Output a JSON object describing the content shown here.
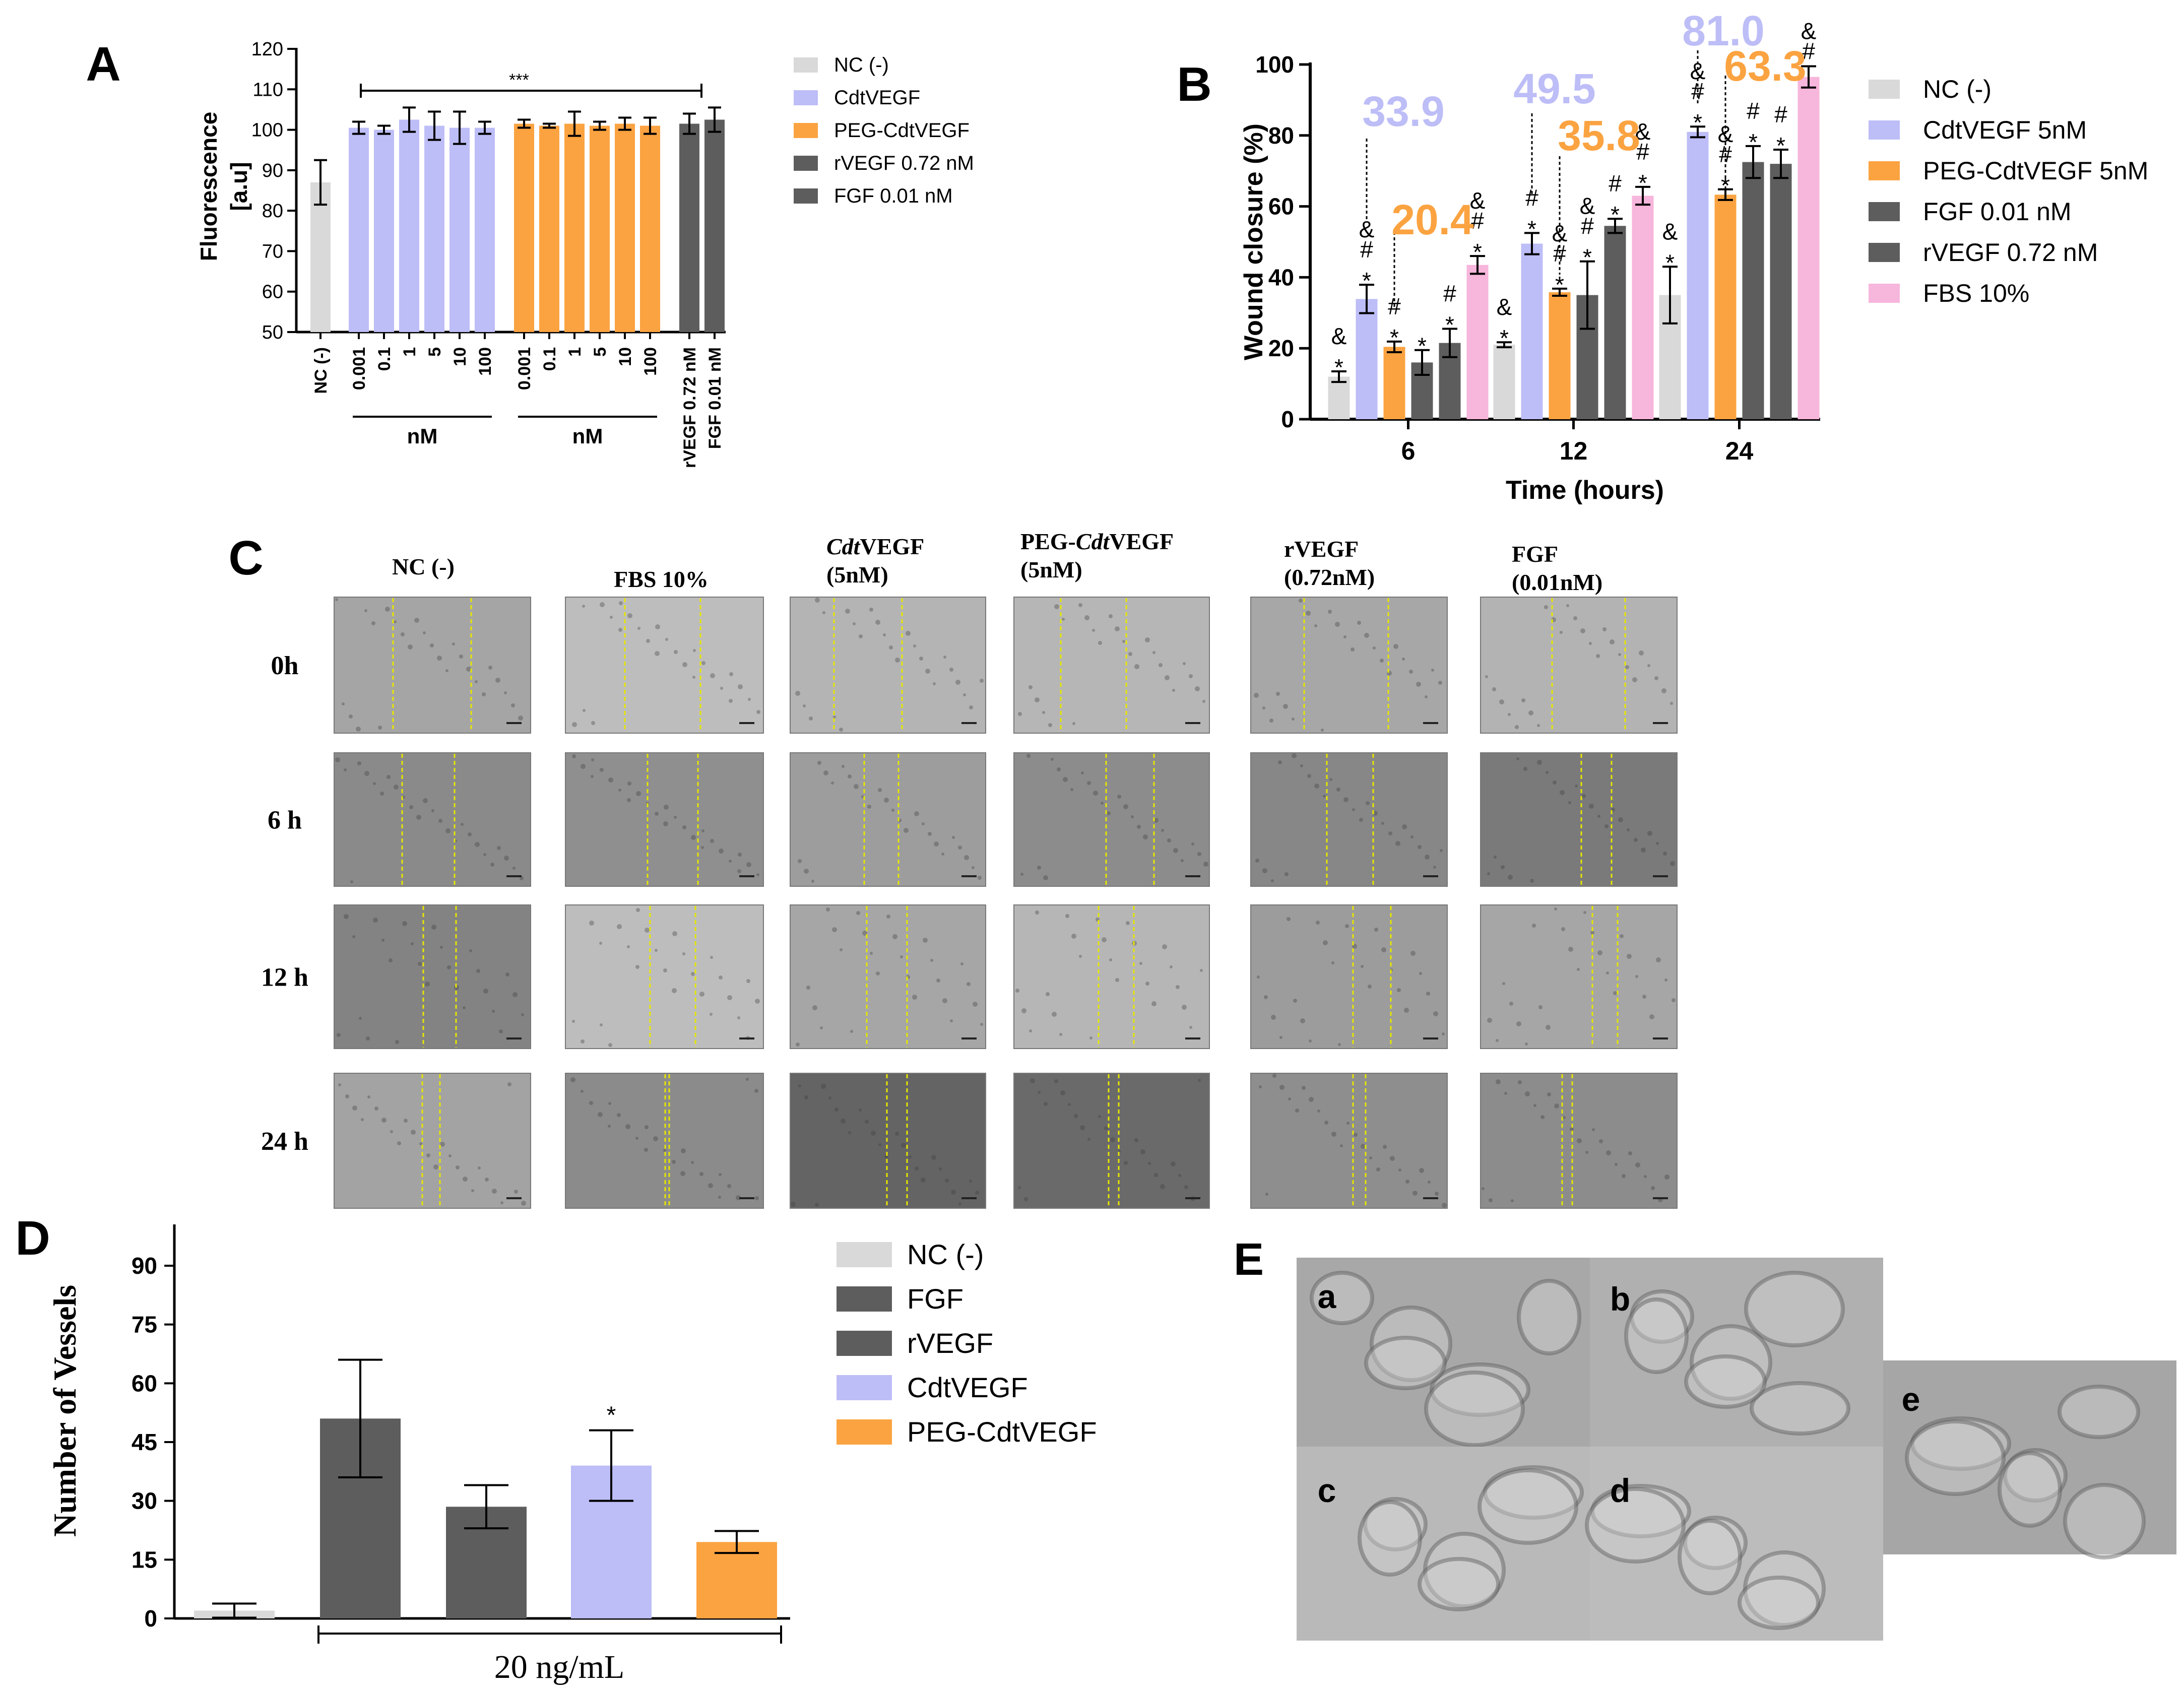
{
  "colors": {
    "nc": "#d9d9d9",
    "cdt": "#bdbdf7",
    "peg": "#fba341",
    "dark": "#5d5d5d",
    "fbs": "#f7b6dc",
    "photo_light": "#b9b9b9",
    "photo_dark": "#6e6e6e",
    "scratch_line": "#e6e600"
  },
  "panel_labels": {
    "a": "A",
    "b": "B",
    "c": "C",
    "d": "D",
    "e": "E"
  },
  "chart_data": [
    {
      "id": "A",
      "type": "bar",
      "title": "",
      "ylabel": "Fluorescence\n[a.u]",
      "ylabel_lines": [
        "Fluorescence",
        "[a.u]"
      ],
      "ylim": [
        50,
        120
      ],
      "yticks": [
        50,
        60,
        70,
        80,
        90,
        100,
        110,
        120
      ],
      "categories": [
        "NC (-)",
        "0.001",
        "0.1",
        "1",
        "5",
        "10",
        "100",
        "0.001",
        "0.1",
        "1",
        "5",
        "10",
        "100",
        "rVEGF 0.72 nM",
        "FGF 0.01 nM"
      ],
      "values": [
        87,
        100.5,
        100,
        102.5,
        101,
        100.5,
        100.5,
        101.5,
        101,
        101.5,
        101,
        101.5,
        101,
        101.5,
        102.5
      ],
      "errors": [
        5.5,
        1.5,
        1,
        3,
        3.5,
        4,
        1.5,
        1,
        0.5,
        3,
        1,
        1.5,
        2,
        2.5,
        3
      ],
      "color_keys": [
        "nc",
        "cdt",
        "cdt",
        "cdt",
        "cdt",
        "cdt",
        "cdt",
        "peg",
        "peg",
        "peg",
        "peg",
        "peg",
        "peg",
        "dark",
        "dark"
      ],
      "group_labels": [
        "nM",
        "nM"
      ],
      "significance": "***",
      "legend": [
        {
          "label": "NC (-)",
          "color_key": "nc"
        },
        {
          "label": "CdtVEGF",
          "color_key": "cdt"
        },
        {
          "label": "PEG-CdtVEGF",
          "color_key": "peg"
        },
        {
          "label": "rVEGF 0.72 nM",
          "color_key": "dark"
        },
        {
          "label": "FGF 0.01 nM",
          "color_key": "dark"
        }
      ],
      "legend_position": "right",
      "grid": false
    },
    {
      "id": "B",
      "type": "bar",
      "title": "",
      "xlabel": "Time (hours)",
      "ylabel": "Wound closure (%)",
      "ylim": [
        0,
        100
      ],
      "yticks": [
        0,
        20,
        40,
        60,
        80,
        100
      ],
      "categories": [
        "6",
        "12",
        "24"
      ],
      "series": [
        {
          "name": "NC (-)",
          "color_key": "nc",
          "values": [
            12,
            21,
            35
          ],
          "errors": [
            1.5,
            0.7,
            8
          ],
          "marks": [
            "*",
            "&",
            "",
            ""
          ]
        },
        {
          "name": "CdtVEGF 5nM",
          "color_key": "cdt",
          "values": [
            33.9,
            49.5,
            81.0
          ],
          "errors": [
            4,
            3,
            1.5
          ],
          "marks": [
            "*",
            "#",
            "&",
            ""
          ]
        },
        {
          "name": "PEG-CdtVEGF 5nM",
          "color_key": "peg",
          "values": [
            20.4,
            35.8,
            63.3
          ],
          "errors": [
            1.5,
            1,
            1.5
          ],
          "marks": [
            "*",
            "#",
            "&",
            ""
          ]
        },
        {
          "name": "FGF 0.01 nM",
          "color_key": "dark",
          "values": [
            16,
            35,
            72.5
          ],
          "errors": [
            3.5,
            9.5,
            4.5
          ],
          "marks": [
            "*",
            "#",
            "&",
            ""
          ]
        },
        {
          "name": "rVEGF 0.72 nM",
          "color_key": "dark",
          "values": [
            21.5,
            54.5,
            72
          ],
          "errors": [
            4,
            2,
            4
          ],
          "marks": [
            "*",
            "#",
            "",
            ""
          ]
        },
        {
          "name": "FBS 10%",
          "color_key": "fbs",
          "values": [
            43.5,
            63,
            96.5
          ],
          "errors": [
            2.5,
            2.5,
            3
          ],
          "marks": [
            "*",
            "#",
            "&",
            ""
          ]
        }
      ],
      "annotations": [
        "33.9",
        "20.4",
        "49.5",
        "35.8",
        "81.0",
        "63.3"
      ],
      "legend_position": "right",
      "grid": false
    },
    {
      "id": "D",
      "type": "bar",
      "title": "",
      "ylabel": "Number of Vessels",
      "xlabel": "20 ng/mL",
      "ylim": [
        0,
        100
      ],
      "yticks": [
        0,
        15,
        30,
        45,
        60,
        75,
        90
      ],
      "categories": [
        "NC (-)",
        "FGF",
        "rVEGF",
        "CdtVEGF",
        "PEG-CdtVEGF"
      ],
      "values": [
        2,
        51,
        28.5,
        39,
        19.5
      ],
      "errors": [
        1.8,
        15,
        5.5,
        9,
        2.8
      ],
      "color_keys": [
        "nc",
        "dark",
        "dark",
        "cdt",
        "peg"
      ],
      "significance_marks": [
        "",
        "",
        "",
        "*",
        ""
      ],
      "legend": [
        {
          "label": "NC (-)",
          "color_key": "nc"
        },
        {
          "label": "FGF",
          "color_key": "dark"
        },
        {
          "label": "rVEGF",
          "color_key": "dark"
        },
        {
          "label": "CdtVEGF",
          "color_key": "cdt"
        },
        {
          "label": "PEG-CdtVEGF",
          "color_key": "peg"
        }
      ],
      "legend_position": "right",
      "grid": false
    }
  ],
  "panel_c": {
    "columns": [
      {
        "lines": [
          "NC (-)"
        ],
        "italic_part": ""
      },
      {
        "lines": [
          "FBS 10%"
        ],
        "italic_part": ""
      },
      {
        "lines": [
          "CdtVEGF",
          "(5nM)"
        ],
        "italic_part": "Cdt"
      },
      {
        "lines": [
          "PEG-CdtVEGF",
          "(5nM)"
        ],
        "italic_part": "Cdt"
      },
      {
        "lines": [
          "rVEGF",
          "(0.72nM)"
        ],
        "italic_part": ""
      },
      {
        "lines": [
          "FGF",
          "(0.01nM)"
        ],
        "italic_part": ""
      }
    ],
    "rows": [
      "0h",
      "6 h",
      "12 h",
      "24 h"
    ]
  },
  "panel_e": {
    "tiles": [
      "a",
      "b",
      "c",
      "d",
      "e"
    ]
  }
}
